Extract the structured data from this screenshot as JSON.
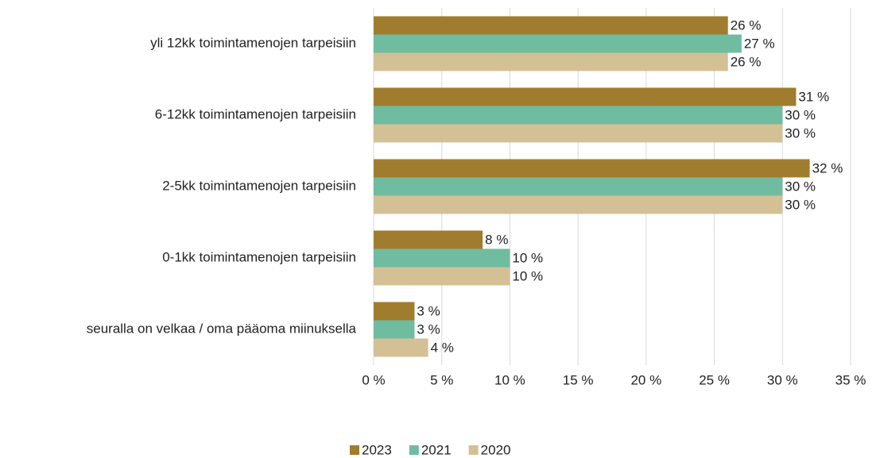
{
  "chart_data": {
    "type": "bar",
    "orientation": "horizontal",
    "categories": [
      "yli 12kk toimintamenojen tarpeisiin",
      "6-12kk toimintamenojen tarpeisiin",
      "2-5kk toimintamenojen tarpeisiin",
      "0-1kk toimintamenojen tarpeisiin",
      "seuralla on velkaa / oma pääoma miinuksella"
    ],
    "series": [
      {
        "name": "2023",
        "color": "#a07c2e",
        "values": [
          26,
          31,
          32,
          8,
          3
        ],
        "value_labels": [
          "26 %",
          "31 %",
          "32 %",
          "8 %",
          "3 %"
        ]
      },
      {
        "name": "2021",
        "color": "#6fbca0",
        "values": [
          27,
          30,
          30,
          10,
          3
        ],
        "value_labels": [
          "27 %",
          "30 %",
          "30 %",
          "10 %",
          "3 %"
        ]
      },
      {
        "name": "2020",
        "color": "#d4c095",
        "values": [
          26,
          30,
          30,
          10,
          4
        ],
        "value_labels": [
          "26 %",
          "30 %",
          "30 %",
          "10 %",
          "4 %"
        ]
      }
    ],
    "xlim": [
      0,
      35
    ],
    "xticks": [
      {
        "value": 0,
        "label": "0 %"
      },
      {
        "value": 5,
        "label": "5 %"
      },
      {
        "value": 10,
        "label": "10 %"
      },
      {
        "value": 15,
        "label": "15 %"
      },
      {
        "value": 20,
        "label": "20 %"
      },
      {
        "value": 25,
        "label": "25 %"
      },
      {
        "value": 30,
        "label": "30 %"
      },
      {
        "value": 35,
        "label": "35 %"
      }
    ],
    "grid": true,
    "legend": "bottom"
  }
}
